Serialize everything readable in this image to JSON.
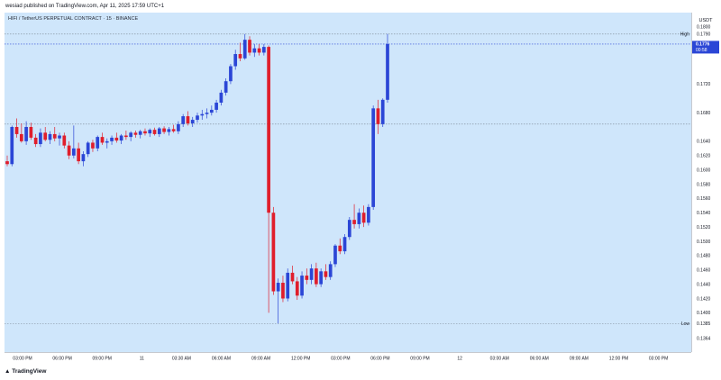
{
  "header": {
    "publish_text": "wesiad published on TradingView.com, Apr 11, 2025 17:59 UTC+1"
  },
  "symbol_line": "HIFI / TetherUS PERPETUAL CONTRACT · 15 · BINANCE",
  "footer": {
    "logo_text": "TradingView"
  },
  "colors": {
    "up": "#2b46d6",
    "down": "#e01e2b",
    "plot_bg": "#cfe6fb",
    "current_price_bg": "#2b46d6"
  },
  "chart_data": {
    "type": "candlestick",
    "title": "HIFI / TetherUS PERPETUAL CONTRACT · 15 · BINANCE",
    "currency": "USDT",
    "ylim": [
      0.1345,
      0.182
    ],
    "price_ticks": [
      "0.1800",
      "0.1790",
      "0.1720",
      "0.1680",
      "0.1640",
      "0.1620",
      "0.1600",
      "0.1580",
      "0.1560",
      "0.1540",
      "0.1520",
      "0.1500",
      "0.1480",
      "0.1460",
      "0.1440",
      "0.1420",
      "0.1400",
      "0.1385",
      "0.1364"
    ],
    "time_ticks": [
      "03:00 PM",
      "06:00 PM",
      "09:00 PM",
      "11",
      "03:30 AM",
      "06:00 AM",
      "09:00 AM",
      "12:00 PM",
      "03:00 PM",
      "06:00 PM",
      "09:00 PM",
      "12",
      "03:00 AM",
      "06:00 AM",
      "09:00 AM",
      "12:00 PM",
      "03:00 PM"
    ],
    "levels": [
      {
        "name": "High",
        "value": 0.179,
        "label": "0.1790"
      },
      {
        "name": "Low",
        "value": 0.1385,
        "label": "0.1385"
      }
    ],
    "current_price": {
      "value": 0.1776,
      "label": "0.1776",
      "countdown": "00:58"
    },
    "reference_line": 0.1664,
    "candles": [
      [
        0.1612,
        0.162,
        0.1605,
        0.1608
      ],
      [
        0.1608,
        0.1662,
        0.1605,
        0.166
      ],
      [
        0.166,
        0.1672,
        0.1645,
        0.165
      ],
      [
        0.165,
        0.1665,
        0.1638,
        0.164
      ],
      [
        0.164,
        0.1668,
        0.1635,
        0.166
      ],
      [
        0.166,
        0.1666,
        0.1642,
        0.1645
      ],
      [
        0.1645,
        0.165,
        0.1632,
        0.1636
      ],
      [
        0.1636,
        0.1658,
        0.1632,
        0.1652
      ],
      [
        0.1652,
        0.166,
        0.164,
        0.1642
      ],
      [
        0.1642,
        0.1654,
        0.1636,
        0.165
      ],
      [
        0.165,
        0.166,
        0.164,
        0.1644
      ],
      [
        0.1644,
        0.1652,
        0.1634,
        0.1648
      ],
      [
        0.1648,
        0.1652,
        0.163,
        0.1634
      ],
      [
        0.1634,
        0.164,
        0.1615,
        0.162
      ],
      [
        0.162,
        0.1662,
        0.1616,
        0.163
      ],
      [
        0.163,
        0.1638,
        0.1608,
        0.1612
      ],
      [
        0.1612,
        0.1626,
        0.1605,
        0.1622
      ],
      [
        0.1622,
        0.164,
        0.1618,
        0.1638
      ],
      [
        0.1638,
        0.1642,
        0.1625,
        0.163
      ],
      [
        0.163,
        0.1648,
        0.1626,
        0.1646
      ],
      [
        0.1646,
        0.1652,
        0.1635,
        0.1638
      ],
      [
        0.1638,
        0.1644,
        0.163,
        0.164
      ],
      [
        0.164,
        0.1648,
        0.1635,
        0.1645
      ],
      [
        0.1645,
        0.1652,
        0.1638,
        0.1641
      ],
      [
        0.1641,
        0.165,
        0.1636,
        0.1648
      ],
      [
        0.1648,
        0.1655,
        0.1642,
        0.1646
      ],
      [
        0.1646,
        0.1654,
        0.164,
        0.1652
      ],
      [
        0.1652,
        0.1655,
        0.1645,
        0.1649
      ],
      [
        0.1649,
        0.1656,
        0.1644,
        0.1654
      ],
      [
        0.1654,
        0.1658,
        0.1648,
        0.1651
      ],
      [
        0.1651,
        0.1658,
        0.1646,
        0.1656
      ],
      [
        0.1656,
        0.1659,
        0.1648,
        0.165
      ],
      [
        0.165,
        0.166,
        0.1646,
        0.1658
      ],
      [
        0.1658,
        0.1661,
        0.165,
        0.1653
      ],
      [
        0.1653,
        0.166,
        0.1648,
        0.1657
      ],
      [
        0.1657,
        0.1663,
        0.1652,
        0.1654
      ],
      [
        0.1654,
        0.1668,
        0.165,
        0.1664
      ],
      [
        0.1664,
        0.1678,
        0.166,
        0.1675
      ],
      [
        0.1675,
        0.1682,
        0.1662,
        0.1665
      ],
      [
        0.1665,
        0.1674,
        0.166,
        0.167
      ],
      [
        0.167,
        0.168,
        0.1666,
        0.1676
      ],
      [
        0.1676,
        0.1684,
        0.167,
        0.1678
      ],
      [
        0.1678,
        0.1686,
        0.1672,
        0.168
      ],
      [
        0.168,
        0.169,
        0.1676,
        0.1684
      ],
      [
        0.1684,
        0.1698,
        0.168,
        0.1694
      ],
      [
        0.1694,
        0.1712,
        0.169,
        0.1708
      ],
      [
        0.1708,
        0.1728,
        0.1704,
        0.1724
      ],
      [
        0.1724,
        0.1748,
        0.172,
        0.1745
      ],
      [
        0.1745,
        0.1768,
        0.174,
        0.1762
      ],
      [
        0.1762,
        0.1778,
        0.1752,
        0.1756
      ],
      [
        0.1756,
        0.179,
        0.1754,
        0.1782
      ],
      [
        0.1782,
        0.1787,
        0.176,
        0.1764
      ],
      [
        0.1764,
        0.1776,
        0.1758,
        0.177
      ],
      [
        0.177,
        0.1776,
        0.176,
        0.1764
      ],
      [
        0.1764,
        0.1776,
        0.176,
        0.1772
      ],
      [
        0.1772,
        0.1774,
        0.14,
        0.154
      ],
      [
        0.154,
        0.1548,
        0.1425,
        0.143
      ],
      [
        0.143,
        0.1448,
        0.1385,
        0.1442
      ],
      [
        0.1442,
        0.1452,
        0.1415,
        0.142
      ],
      [
        0.142,
        0.1462,
        0.1416,
        0.1456
      ],
      [
        0.1456,
        0.1466,
        0.144,
        0.1444
      ],
      [
        0.1444,
        0.145,
        0.1418,
        0.1424
      ],
      [
        0.1424,
        0.1458,
        0.142,
        0.1452
      ],
      [
        0.1452,
        0.1462,
        0.144,
        0.1446
      ],
      [
        0.1446,
        0.1468,
        0.144,
        0.1462
      ],
      [
        0.1462,
        0.147,
        0.1436,
        0.144
      ],
      [
        0.144,
        0.1462,
        0.1436,
        0.1458
      ],
      [
        0.1458,
        0.1468,
        0.1446,
        0.145
      ],
      [
        0.145,
        0.1472,
        0.1446,
        0.1468
      ],
      [
        0.1468,
        0.1496,
        0.1464,
        0.1494
      ],
      [
        0.1494,
        0.1504,
        0.1482,
        0.1486
      ],
      [
        0.1486,
        0.151,
        0.1482,
        0.1506
      ],
      [
        0.1506,
        0.1534,
        0.1502,
        0.153
      ],
      [
        0.153,
        0.1552,
        0.1518,
        0.1524
      ],
      [
        0.1524,
        0.1546,
        0.1518,
        0.154
      ],
      [
        0.154,
        0.155,
        0.152,
        0.1526
      ],
      [
        0.1526,
        0.1552,
        0.1522,
        0.1548
      ],
      [
        0.1548,
        0.169,
        0.1544,
        0.1686
      ],
      [
        0.1686,
        0.1698,
        0.165,
        0.1664
      ],
      [
        0.1664,
        0.17,
        0.166,
        0.1698
      ],
      [
        0.1698,
        0.179,
        0.1694,
        0.1776
      ]
    ]
  }
}
